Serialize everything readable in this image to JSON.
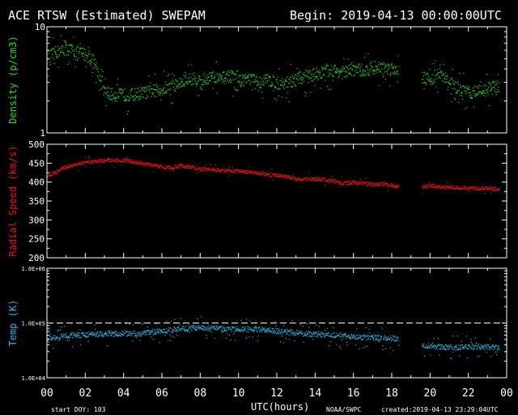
{
  "header": {
    "title": "ACE RTSW (Estimated) SWEPAM",
    "begin": "Begin: 2019-04-13 00:00:00UTC"
  },
  "footer": {
    "start_doy": "start DOY: 103",
    "xlabel": "UTC(hours)",
    "source": "NOAA/SWPC",
    "created": "created:2019-04-13 23:29:04UTC"
  },
  "colors": {
    "background": "#000000",
    "axes": "#ffffff",
    "density": "#22dd22",
    "speed": "#ee1111",
    "temp": "#22b8e6"
  },
  "chart_data": [
    {
      "type": "scatter",
      "ylabel": "Density (p/cm3)",
      "xlim": [
        0,
        24
      ],
      "ylim": [
        1,
        10
      ],
      "yscale": "log",
      "yticks": [
        "1",
        "10"
      ],
      "xticks": [
        "00",
        "02",
        "04",
        "06",
        "08",
        "10",
        "12",
        "14",
        "16",
        "18",
        "20",
        "22",
        "00"
      ],
      "series": [
        {
          "x": [
            0,
            0.5,
            1,
            1.5,
            2,
            2.5,
            2.8,
            3,
            3.5,
            4,
            4.5,
            5,
            5.5,
            6,
            6.5,
            7,
            7.5,
            8,
            8.5,
            9,
            9.5,
            10,
            10.5,
            11,
            11.5,
            12,
            12.5,
            13,
            13.5,
            14,
            14.5,
            15,
            15.5,
            16,
            16.5,
            17,
            17.5,
            18,
            18.3,
            19.6,
            20,
            20.5,
            21,
            21.5,
            22,
            22.5,
            23,
            23.5
          ],
          "y": [
            5.2,
            5.8,
            6.3,
            5.9,
            5.5,
            4.5,
            3.0,
            2.4,
            2.3,
            2.3,
            2.3,
            2.4,
            2.5,
            2.6,
            2.8,
            3.0,
            3.3,
            3.1,
            3.4,
            3.2,
            3.5,
            3.1,
            3.3,
            3.0,
            3.2,
            3.0,
            2.9,
            3.2,
            3.4,
            3.6,
            3.8,
            3.9,
            3.7,
            4.0,
            3.9,
            4.2,
            4.1,
            4.1,
            4.0,
            3.4,
            3.2,
            3.6,
            3.0,
            2.6,
            2.4,
            2.5,
            2.6,
            2.8
          ]
        }
      ]
    },
    {
      "type": "scatter",
      "ylabel": "Radial Speed (km/s)",
      "xlim": [
        0,
        24
      ],
      "ylim": [
        200,
        500
      ],
      "yticks": [
        200,
        250,
        300,
        350,
        400,
        450,
        500
      ],
      "xticks": [
        "00",
        "02",
        "04",
        "06",
        "08",
        "10",
        "12",
        "14",
        "16",
        "18",
        "20",
        "22",
        "00"
      ],
      "series": [
        {
          "x": [
            0,
            0.5,
            1,
            1.5,
            2,
            2.5,
            3,
            3.5,
            4,
            4.5,
            5,
            5.5,
            6,
            6.5,
            7,
            7.5,
            8,
            8.5,
            9,
            9.5,
            10,
            10.5,
            11,
            11.5,
            12,
            12.5,
            13,
            13.5,
            14,
            14.5,
            15,
            15.5,
            16,
            16.5,
            17,
            17.5,
            18,
            18.3,
            19.6,
            20,
            20.5,
            21,
            21.5,
            22,
            22.5,
            23,
            23.5
          ],
          "y": [
            418,
            428,
            442,
            448,
            452,
            455,
            458,
            460,
            458,
            455,
            450,
            445,
            442,
            438,
            445,
            440,
            435,
            435,
            432,
            430,
            430,
            427,
            425,
            420,
            420,
            415,
            410,
            408,
            410,
            407,
            403,
            398,
            400,
            398,
            395,
            396,
            392,
            390,
            388,
            392,
            388,
            387,
            386,
            385,
            384,
            384,
            382
          ]
        }
      ]
    },
    {
      "type": "scatter",
      "ylabel": "Temp (K)",
      "xlim": [
        0,
        24
      ],
      "ylim": [
        10000,
        1000000
      ],
      "yscale": "log",
      "yticks": [
        "1.0E+04",
        "1.0E+05",
        "1.0E+06"
      ],
      "reference_line": 100000,
      "xticks": [
        "00",
        "02",
        "04",
        "06",
        "08",
        "10",
        "12",
        "14",
        "16",
        "18",
        "20",
        "22",
        "00"
      ],
      "series": [
        {
          "x": [
            0,
            0.5,
            1,
            1.5,
            2,
            2.5,
            3,
            3.5,
            4,
            4.5,
            5,
            5.5,
            6,
            6.5,
            7,
            7.5,
            8,
            8.5,
            9,
            9.5,
            10,
            10.5,
            11,
            11.5,
            12,
            12.5,
            13,
            13.5,
            14,
            14.5,
            15,
            15.5,
            16,
            16.5,
            17,
            17.5,
            18,
            18.3,
            19.6,
            20,
            20.5,
            21,
            21.5,
            22,
            22.5,
            23,
            23.5
          ],
          "y": [
            52000,
            55000,
            60000,
            62000,
            62000,
            63000,
            64000,
            65000,
            66000,
            65000,
            65000,
            70000,
            72000,
            75000,
            80000,
            82000,
            85000,
            82000,
            80000,
            78000,
            80000,
            78000,
            77000,
            75000,
            72000,
            70000,
            68000,
            65000,
            63000,
            62000,
            60000,
            58000,
            57000,
            56000,
            55000,
            55000,
            54000,
            52000,
            40000,
            38000,
            37000,
            37000,
            36000,
            38000,
            37000,
            37000,
            36000
          ]
        }
      ]
    }
  ]
}
